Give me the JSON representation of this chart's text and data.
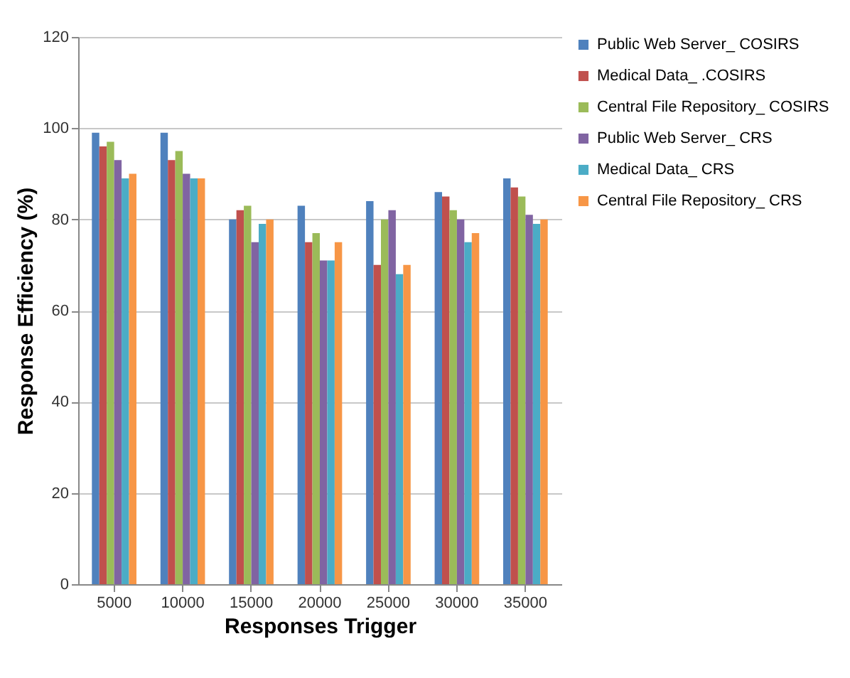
{
  "chart_data": {
    "type": "bar",
    "xlabel": "Responses Trigger",
    "ylabel": "Response Efficiency (%)",
    "categories": [
      "5000",
      "10000",
      "15000",
      "20000",
      "25000",
      "30000",
      "35000"
    ],
    "series": [
      {
        "name": "Public Web Server_   COSIRS",
        "color": "#4f81bd",
        "values": [
          99,
          99,
          80,
          83,
          84,
          86,
          89
        ]
      },
      {
        "name": "Medical Data_   .COSIRS",
        "color": "#c0504d",
        "values": [
          96,
          93,
          82,
          75,
          70,
          85,
          87
        ]
      },
      {
        "name": "Central File Repository_   COSIRS",
        "color": "#9bbb59",
        "values": [
          97,
          95,
          83,
          77,
          80,
          82,
          85
        ]
      },
      {
        "name": "Public Web Server_ CRS",
        "color": "#8064a2",
        "values": [
          93,
          90,
          75,
          71,
          82,
          80,
          81
        ]
      },
      {
        "name": "Medical Data_ CRS",
        "color": "#4bacc6",
        "values": [
          89,
          89,
          79,
          71,
          68,
          75,
          79
        ]
      },
      {
        "name": "Central File Repository_ CRS",
        "color": "#f79646",
        "values": [
          90,
          89,
          80,
          75,
          70,
          77,
          80
        ]
      }
    ],
    "ylim": [
      0,
      120
    ],
    "yticks": [
      0,
      20,
      40,
      60,
      80,
      100,
      120
    ],
    "grid": "y",
    "legend": "right"
  }
}
